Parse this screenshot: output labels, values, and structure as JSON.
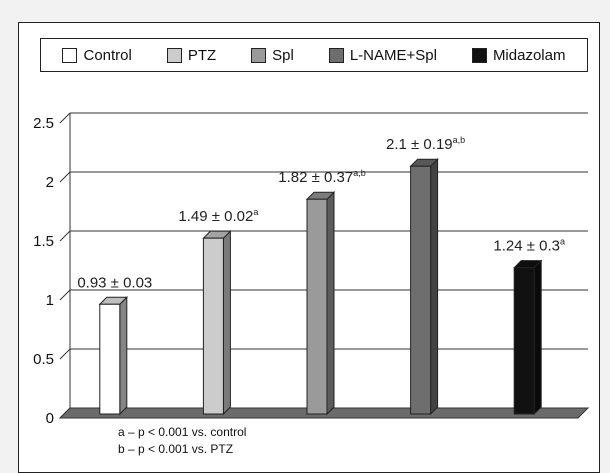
{
  "chart_data": {
    "type": "bar",
    "categories": [
      "Control",
      "PTZ",
      "Spl",
      "L-NAME+Spl",
      "Midazolam"
    ],
    "values": [
      0.93,
      1.49,
      1.82,
      2.1,
      1.24
    ],
    "series": [
      {
        "name": "Control",
        "value": 0.93,
        "color": "#ffffff"
      },
      {
        "name": "PTZ",
        "value": 1.49,
        "color": "#cccccc"
      },
      {
        "name": "Spl",
        "value": 1.82,
        "color": "#9a9a9a"
      },
      {
        "name": "L-NAME+Spl",
        "value": 2.1,
        "color": "#6e6e6e"
      },
      {
        "name": "Midazolam",
        "value": 1.24,
        "color": "#111111"
      }
    ],
    "data_labels": [
      {
        "text": "0.93 ± 0.03",
        "sup": ""
      },
      {
        "text": "1.49 ± 0.02",
        "sup": "a"
      },
      {
        "text": "1.82 ± 0.37",
        "sup": "a,b"
      },
      {
        "text": "2.1 ± 0.19",
        "sup": "a,b"
      },
      {
        "text": "1.24 ± 0.3",
        "sup": "a"
      }
    ],
    "yticks": [
      "0",
      "0.5",
      "1",
      "1.5",
      "2",
      "2.5"
    ],
    "ylim": [
      0,
      2.5
    ],
    "grid": true,
    "legend_position": "top",
    "title": "",
    "xlabel": "",
    "ylabel": ""
  },
  "footnotes": [
    "a – p < 0.001 vs. control",
    "b – p < 0.001 vs. PTZ"
  ]
}
